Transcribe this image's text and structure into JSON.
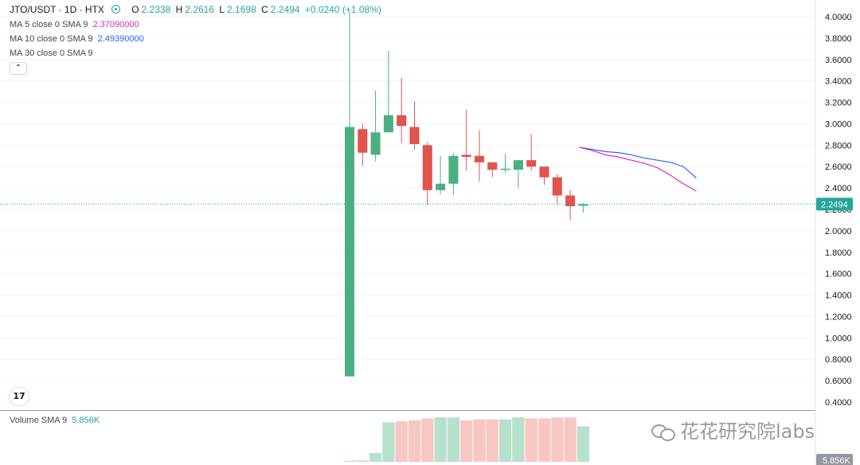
{
  "header": {
    "symbol": "JTO/USDT · 1D · HTX",
    "open_label": "O",
    "open": "2.2338",
    "high_label": "H",
    "high": "2.2616",
    "low_label": "L",
    "low": "2.1698",
    "close_label": "C",
    "close": "2.2494",
    "change": "+0.0240 (+1.08%)"
  },
  "indicators": {
    "ma5": {
      "label": "MA 5 close 0 SMA 9",
      "value": "2.37090000",
      "color": "#d62ac6"
    },
    "ma10": {
      "label": "MA 10 close 0 SMA 9",
      "value": "2.49390000",
      "color": "#2962ff"
    },
    "ma30": {
      "label": "MA 30 close 0 SMA 9"
    },
    "volume": {
      "label": "Volume SMA 9",
      "value": "5.856K"
    }
  },
  "price_axis": {
    "ticks": [
      "4.0000",
      "3.8000",
      "3.6000",
      "3.4000",
      "3.2000",
      "3.0000",
      "2.8000",
      "2.6000",
      "2.4000",
      "2.2000",
      "2.0000",
      "1.8000",
      "1.6000",
      "1.4000",
      "1.2000",
      "1.0000",
      "0.8000",
      "0.6000",
      "0.4000"
    ],
    "current_price_label": "2.2494",
    "volume_label": "5.856K"
  },
  "colors": {
    "up": "#26a69a",
    "down": "#ef5350",
    "up_candle": "#4caf82",
    "down_candle": "#e0534f"
  },
  "watermark": "花花研究院labs",
  "tv_logo": "17",
  "chart_data": {
    "type": "candlestick",
    "ylim": [
      0.4,
      4.0
    ],
    "candles": [
      {
        "o": 0.64,
        "h": 4.05,
        "l": 0.64,
        "c": 2.97
      },
      {
        "o": 2.95,
        "h": 3.0,
        "l": 2.61,
        "c": 2.73
      },
      {
        "o": 2.71,
        "h": 3.31,
        "l": 2.65,
        "c": 2.92
      },
      {
        "o": 2.92,
        "h": 3.68,
        "l": 2.92,
        "c": 3.08
      },
      {
        "o": 3.08,
        "h": 3.43,
        "l": 2.82,
        "c": 2.98
      },
      {
        "o": 2.97,
        "h": 3.21,
        "l": 2.76,
        "c": 2.81
      },
      {
        "o": 2.8,
        "h": 2.83,
        "l": 2.24,
        "c": 2.38
      },
      {
        "o": 2.38,
        "h": 2.7,
        "l": 2.34,
        "c": 2.44
      },
      {
        "o": 2.44,
        "h": 2.73,
        "l": 2.33,
        "c": 2.7
      },
      {
        "o": 2.71,
        "h": 3.13,
        "l": 2.56,
        "c": 2.69
      },
      {
        "o": 2.7,
        "h": 2.94,
        "l": 2.46,
        "c": 2.64
      },
      {
        "o": 2.64,
        "h": 2.62,
        "l": 2.5,
        "c": 2.57
      },
      {
        "o": 2.58,
        "h": 2.72,
        "l": 2.54,
        "c": 2.58
      },
      {
        "o": 2.57,
        "h": 2.66,
        "l": 2.4,
        "c": 2.66
      },
      {
        "o": 2.66,
        "h": 2.9,
        "l": 2.56,
        "c": 2.6
      },
      {
        "o": 2.6,
        "h": 2.6,
        "l": 2.43,
        "c": 2.5
      },
      {
        "o": 2.5,
        "h": 2.53,
        "l": 2.25,
        "c": 2.33
      },
      {
        "o": 2.33,
        "h": 2.38,
        "l": 2.1,
        "c": 2.23
      },
      {
        "o": 2.2338,
        "h": 2.2616,
        "l": 2.1698,
        "c": 2.2494
      }
    ],
    "ma5": [
      null,
      null,
      null,
      null,
      null,
      null,
      null,
      null,
      null,
      2.78,
      2.75,
      2.71,
      2.69,
      2.66,
      2.63,
      2.59,
      2.52,
      2.44,
      2.3709
    ],
    "ma10": [
      null,
      null,
      null,
      null,
      null,
      null,
      null,
      null,
      null,
      2.78,
      2.76,
      2.74,
      2.73,
      2.71,
      2.68,
      2.66,
      2.64,
      2.6,
      2.4939
    ],
    "volume": [
      2,
      3,
      18,
      80,
      82,
      84,
      88,
      90,
      90,
      84,
      86,
      86,
      86,
      90,
      88,
      88,
      90,
      90,
      72
    ]
  }
}
